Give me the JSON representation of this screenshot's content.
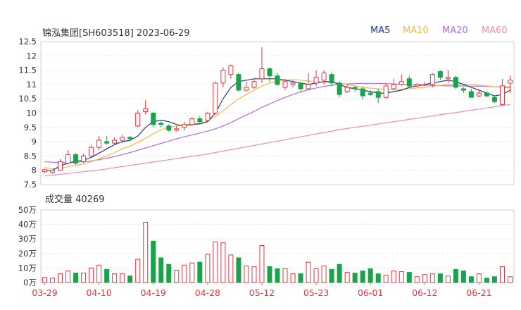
{
  "header": {
    "title": "锦泓集团[SH603518] 2023-06-29",
    "legend": [
      {
        "label": "MA5",
        "color": "#1f3a93"
      },
      {
        "label": "MA10",
        "color": "#f5b942"
      },
      {
        "label": "MA20",
        "color": "#b46be0"
      },
      {
        "label": "MA60",
        "color": "#f08ab8"
      }
    ]
  },
  "volume_panel": {
    "label": "成交量 40269"
  },
  "chart_data": [
    {
      "type": "candlestick",
      "name": "price",
      "ylim": [
        7.5,
        12.5
      ],
      "yticks": [
        "12.5",
        "12",
        "11.5",
        "11",
        "10.5",
        "10",
        "9.5",
        "9",
        "8.5",
        "8",
        "7.5"
      ],
      "up_color": "#e8323c",
      "down_color": "#1aa34a",
      "candles": [
        [
          7.95,
          8.02,
          8.05,
          7.9
        ],
        [
          7.92,
          8.0,
          8.02,
          7.88
        ],
        [
          8.0,
          8.3,
          8.4,
          7.98
        ],
        [
          8.25,
          8.55,
          8.7,
          8.2
        ],
        [
          8.55,
          8.25,
          8.6,
          8.2
        ],
        [
          8.3,
          8.5,
          8.58,
          8.25
        ],
        [
          8.5,
          8.8,
          8.9,
          8.45
        ],
        [
          8.8,
          9.05,
          9.2,
          8.7
        ],
        [
          9.0,
          8.95,
          9.2,
          8.9
        ],
        [
          8.95,
          9.05,
          9.15,
          8.9
        ],
        [
          9.05,
          9.15,
          9.25,
          8.95
        ],
        [
          9.15,
          9.1,
          9.2,
          9.0
        ],
        [
          9.55,
          10.0,
          10.1,
          9.5
        ],
        [
          10.05,
          10.15,
          10.45,
          9.95
        ],
        [
          10.0,
          9.6,
          10.05,
          9.5
        ],
        [
          9.65,
          9.6,
          9.7,
          9.5
        ],
        [
          9.55,
          9.4,
          9.6,
          9.35
        ],
        [
          9.4,
          9.45,
          9.55,
          9.35
        ],
        [
          9.5,
          9.6,
          9.7,
          9.4
        ],
        [
          9.6,
          9.8,
          9.85,
          9.55
        ],
        [
          9.8,
          9.7,
          9.9,
          9.6
        ],
        [
          9.75,
          10.0,
          10.05,
          9.7
        ],
        [
          10.0,
          11.05,
          11.1,
          9.95
        ],
        [
          11.05,
          11.5,
          11.6,
          10.9
        ],
        [
          11.35,
          11.65,
          11.7,
          11.2
        ],
        [
          11.35,
          10.8,
          11.4,
          10.75
        ],
        [
          10.8,
          10.9,
          11.1,
          10.75
        ],
        [
          10.9,
          11.1,
          11.2,
          10.85
        ],
        [
          11.2,
          11.55,
          12.3,
          11.05
        ],
        [
          11.55,
          11.3,
          11.6,
          11.1
        ],
        [
          11.3,
          11.0,
          11.4,
          10.95
        ],
        [
          10.9,
          11.1,
          11.2,
          10.8
        ],
        [
          11.0,
          11.05,
          11.15,
          10.9
        ],
        [
          11.05,
          10.85,
          11.1,
          10.75
        ],
        [
          10.85,
          11.0,
          11.4,
          10.8
        ],
        [
          11.05,
          11.25,
          11.5,
          10.95
        ],
        [
          11.15,
          11.4,
          11.5,
          11.0
        ],
        [
          11.35,
          11.05,
          11.45,
          10.95
        ],
        [
          11.05,
          10.65,
          11.1,
          10.55
        ],
        [
          10.75,
          10.9,
          11.0,
          10.7
        ],
        [
          10.9,
          10.85,
          10.95,
          10.75
        ],
        [
          10.85,
          10.6,
          10.95,
          10.45
        ],
        [
          10.7,
          10.65,
          10.8,
          10.6
        ],
        [
          10.75,
          10.55,
          10.85,
          10.35
        ],
        [
          10.55,
          10.95,
          11.05,
          10.5
        ],
        [
          10.85,
          11.0,
          11.2,
          10.8
        ],
        [
          11.0,
          11.1,
          11.35,
          10.95
        ],
        [
          11.2,
          10.95,
          11.3,
          10.9
        ],
        [
          10.95,
          11.0,
          11.05,
          10.9
        ],
        [
          11.0,
          11.0,
          11.1,
          10.95
        ],
        [
          11.0,
          11.35,
          11.4,
          10.9
        ],
        [
          11.45,
          11.25,
          11.5,
          11.15
        ],
        [
          11.2,
          11.25,
          11.5,
          11.05
        ],
        [
          11.25,
          10.9,
          11.3,
          10.85
        ],
        [
          10.85,
          10.8,
          10.9,
          10.7
        ],
        [
          10.75,
          10.55,
          10.85,
          10.55
        ],
        [
          10.6,
          10.7,
          10.8,
          10.55
        ],
        [
          10.7,
          10.6,
          10.75,
          10.55
        ],
        [
          10.55,
          10.4,
          10.6,
          10.35
        ],
        [
          10.3,
          10.95,
          11.2,
          10.25
        ],
        [
          11.05,
          11.15,
          11.3,
          10.7
        ]
      ],
      "ma": {
        "MA5": [
          8.0,
          8.0,
          8.15,
          8.25,
          8.32,
          8.35,
          8.45,
          8.6,
          8.75,
          8.9,
          9.0,
          9.05,
          9.2,
          9.5,
          9.7,
          9.75,
          9.7,
          9.6,
          9.55,
          9.6,
          9.62,
          9.7,
          10.0,
          10.5,
          10.9,
          11.1,
          11.15,
          11.2,
          11.2,
          11.2,
          11.2,
          11.15,
          11.1,
          11.05,
          11.0,
          11.05,
          11.1,
          11.1,
          11.0,
          10.9,
          10.85,
          10.8,
          10.75,
          10.7,
          10.7,
          10.75,
          10.8,
          10.9,
          10.95,
          11.0,
          11.05,
          11.1,
          11.15,
          11.1,
          11.0,
          10.9,
          10.8,
          10.7,
          10.6,
          10.65,
          10.8
        ],
        "MA10": [
          8.1,
          8.05,
          8.08,
          8.12,
          8.18,
          8.22,
          8.3,
          8.4,
          8.5,
          8.62,
          8.75,
          8.85,
          8.97,
          9.12,
          9.28,
          9.42,
          9.5,
          9.55,
          9.58,
          9.62,
          9.65,
          9.72,
          9.88,
          10.08,
          10.3,
          10.5,
          10.65,
          10.8,
          10.95,
          11.05,
          11.12,
          11.15,
          11.17,
          11.15,
          11.12,
          11.1,
          11.08,
          11.07,
          11.05,
          11.0,
          10.95,
          10.9,
          10.87,
          10.85,
          10.82,
          10.82,
          10.83,
          10.85,
          10.88,
          10.9,
          10.93,
          10.97,
          11.0,
          11.02,
          11.02,
          11.0,
          10.97,
          10.95,
          10.92,
          10.9,
          10.88
        ],
        "MA20": [
          8.3,
          8.28,
          8.27,
          8.27,
          8.28,
          8.3,
          8.33,
          8.37,
          8.42,
          8.48,
          8.55,
          8.62,
          8.7,
          8.78,
          8.86,
          8.94,
          9.02,
          9.1,
          9.17,
          9.24,
          9.3,
          9.37,
          9.45,
          9.55,
          9.67,
          9.8,
          9.93,
          10.06,
          10.2,
          10.32,
          10.44,
          10.55,
          10.65,
          10.74,
          10.82,
          10.88,
          10.93,
          10.97,
          11.0,
          11.02,
          11.03,
          11.04,
          11.04,
          11.04,
          11.03,
          11.02,
          11.01,
          11.0,
          10.99,
          10.98,
          10.97,
          10.96,
          10.95,
          10.95,
          10.95,
          10.94,
          10.94,
          10.93,
          10.92,
          10.92,
          10.91
        ],
        "MA60": [
          7.8,
          7.83,
          7.86,
          7.89,
          7.92,
          7.95,
          7.98,
          8.01,
          8.05,
          8.09,
          8.13,
          8.17,
          8.21,
          8.25,
          8.29,
          8.33,
          8.37,
          8.41,
          8.45,
          8.49,
          8.53,
          8.57,
          8.62,
          8.67,
          8.72,
          8.77,
          8.82,
          8.87,
          8.92,
          8.97,
          9.02,
          9.07,
          9.12,
          9.17,
          9.22,
          9.27,
          9.32,
          9.37,
          9.42,
          9.46,
          9.5,
          9.54,
          9.58,
          9.62,
          9.66,
          9.7,
          9.74,
          9.78,
          9.82,
          9.86,
          9.9,
          9.94,
          9.98,
          10.02,
          10.06,
          10.1,
          10.14,
          10.18,
          10.22,
          10.26,
          10.3
        ]
      }
    },
    {
      "type": "bar",
      "name": "volume",
      "ylim": [
        0,
        50
      ],
      "yticks": [
        "50万",
        "40万",
        "30万",
        "20万",
        "10万",
        "0万"
      ],
      "values": [
        3.5,
        3.0,
        6.0,
        8.0,
        6.5,
        6.5,
        10.0,
        12.0,
        9.0,
        6.0,
        6.0,
        4.5,
        16.0,
        41.5,
        28.5,
        17.0,
        12.5,
        8.5,
        12.0,
        13.5,
        14.0,
        19.5,
        28.0,
        27.5,
        19.0,
        17.0,
        11.5,
        11.0,
        25.5,
        11.0,
        9.5,
        9.5,
        6.0,
        6.0,
        14.0,
        9.5,
        11.5,
        9.0,
        12.5,
        7.0,
        6.5,
        8.0,
        9.5,
        6.0,
        5.0,
        8.0,
        7.5,
        7.0,
        4.0,
        5.5,
        6.0,
        6.0,
        4.5,
        9.0,
        8.0,
        4.0,
        6.0,
        3.0,
        4.0,
        11.0,
        4.0
      ]
    }
  ],
  "x_axis": {
    "labels": [
      {
        "text": "03-29",
        "index": 0
      },
      {
        "text": "04-10",
        "index": 7
      },
      {
        "text": "04-19",
        "index": 14
      },
      {
        "text": "04-28",
        "index": 21
      },
      {
        "text": "05-12",
        "index": 28
      },
      {
        "text": "05-23",
        "index": 35
      },
      {
        "text": "06-01",
        "index": 42
      },
      {
        "text": "06-12",
        "index": 49
      },
      {
        "text": "06-21",
        "index": 56
      }
    ]
  }
}
